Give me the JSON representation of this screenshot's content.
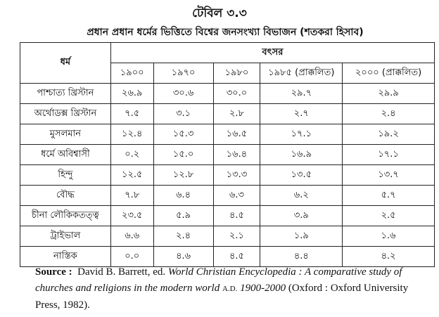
{
  "title": "টেবিল ৩.৩",
  "subtitle": "প্রধান প্রধান ধর্মের ভিত্তিতে বিশ্বের জনসংখ্যা বিভাজন (শতকরা হিসাব)",
  "table": {
    "religion_header": "ধর্ম",
    "year_header": "বৎসর",
    "years": [
      "১৯০০",
      "১৯৭০",
      "১৯৮০",
      "১৯৮৫ (প্রাক্কলিত)",
      "২০০০ (প্রাক্কলিত)"
    ],
    "rows": [
      {
        "name": "পাশ্চাত্য খ্রিস্টান",
        "values": [
          "২৬.৯",
          "৩০.৬",
          "৩০.০",
          "২৯.৭",
          "২৯.৯"
        ]
      },
      {
        "name": "অর্থোডক্স খ্রিস্টান",
        "values": [
          "৭.৫",
          "৩.১",
          "২.৮",
          "২.৭",
          "২.৪"
        ]
      },
      {
        "name": "মুসলমান",
        "values": [
          "১২.৪",
          "১৫.৩",
          "১৬.৫",
          "১৭.১",
          "১৯.২"
        ]
      },
      {
        "name": "ধর্মে অবিশ্বাসী",
        "values": [
          "০.২",
          "১৫.০",
          "১৬.৪",
          "১৬.৯",
          "১৭.১"
        ]
      },
      {
        "name": "হিন্দু",
        "values": [
          "১২.৫",
          "১২.৮",
          "১৩.৩",
          "১৩.৫",
          "১৩.৭"
        ]
      },
      {
        "name": "বৌদ্ধ",
        "values": [
          "৭.৮",
          "৬.৪",
          "৬.৩",
          "৬.২",
          "৫.৭"
        ]
      },
      {
        "name": "চীনা লৌকিকতত্ত্ব",
        "values": [
          "২৩.৫",
          "৫.৯",
          "৪.৫",
          "৩.৯",
          "২.৫"
        ]
      },
      {
        "name": "ট্রাইভাল",
        "values": [
          "৬.৬",
          "২.৪",
          "২.১",
          "১.৯",
          "১.৬"
        ]
      },
      {
        "name": "নাস্তিক",
        "values": [
          "০.০",
          "৪.৬",
          "৪.৫",
          "৪.৪",
          "৪.২"
        ]
      }
    ]
  },
  "source": {
    "label": "Source :",
    "author": "David B. Barrett, ed.",
    "work": "World Christian Encyclopedia : A comparative study of churches and religions in the modern world",
    "era": "A.D.",
    "years": "1900-2000",
    "publisher": "(Oxford : Oxford University Press, 1982)."
  }
}
